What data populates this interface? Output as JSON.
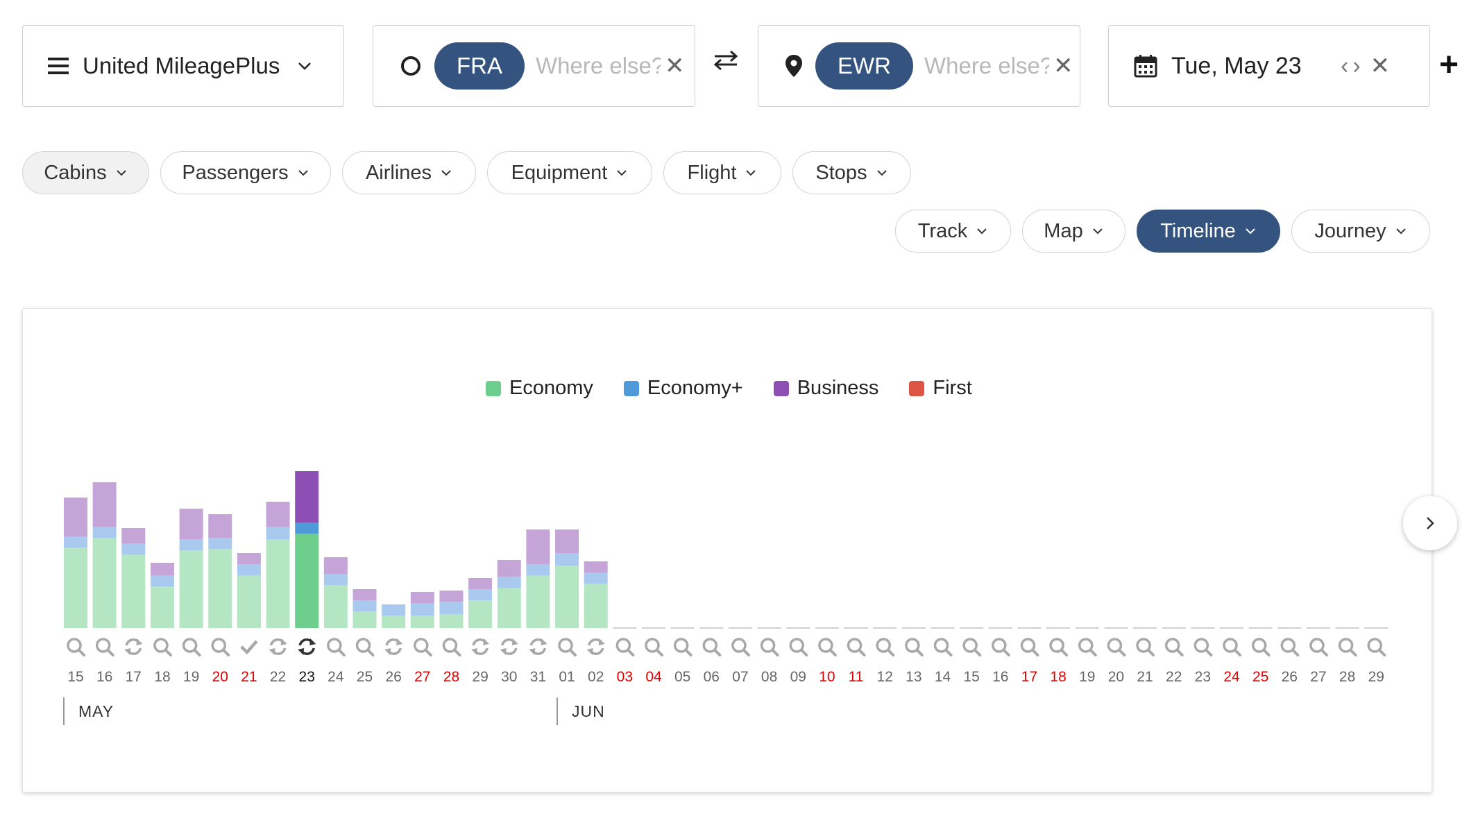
{
  "search_bar": {
    "program": "United MileagePlus",
    "origin": {
      "code": "FRA",
      "placeholder": "Where else?"
    },
    "destination": {
      "code": "EWR",
      "placeholder": "Where else?"
    },
    "date": "Tue, May 23",
    "clear_glyph": "✕",
    "prev_glyph": "‹",
    "next_glyph": "›",
    "add_glyph": "+"
  },
  "filters": [
    {
      "label": "Cabins",
      "name": "cabins"
    },
    {
      "label": "Passengers",
      "name": "passengers"
    },
    {
      "label": "Airlines",
      "name": "airlines"
    },
    {
      "label": "Equipment",
      "name": "equipment"
    },
    {
      "label": "Flight",
      "name": "flight"
    },
    {
      "label": "Stops",
      "name": "stops"
    }
  ],
  "views": [
    {
      "label": "Track",
      "name": "track"
    },
    {
      "label": "Map",
      "name": "map"
    },
    {
      "label": "Timeline",
      "name": "timeline",
      "active": true
    },
    {
      "label": "Journey",
      "name": "journey"
    }
  ],
  "colors": {
    "accent": "#34547f",
    "economy": "#6dcf8b",
    "economy_plus": "#4f9ad8",
    "business": "#8e4fb5",
    "first": "#dd5444",
    "weekend": "#e00000"
  },
  "legend": [
    {
      "label": "Economy",
      "color": "#6dcf8b"
    },
    {
      "label": "Economy+",
      "color": "#4f9ad8"
    },
    {
      "label": "Business",
      "color": "#8e4fb5"
    },
    {
      "label": "First",
      "color": "#dd5444"
    }
  ],
  "months": [
    "MAY",
    "JUN"
  ],
  "chart_data": {
    "type": "bar",
    "stacked": true,
    "title": "",
    "series_names": [
      "Economy",
      "Economy+",
      "Business",
      "First"
    ],
    "selected": "23",
    "days": [
      {
        "label": "15",
        "weekend": false,
        "status": "search",
        "economy": 58,
        "economy_plus": 8,
        "business": 28,
        "first": 0
      },
      {
        "label": "16",
        "weekend": false,
        "status": "search",
        "economy": 65,
        "economy_plus": 8,
        "business": 32,
        "first": 0
      },
      {
        "label": "17",
        "weekend": false,
        "status": "refresh",
        "economy": 53,
        "economy_plus": 8,
        "business": 11,
        "first": 0
      },
      {
        "label": "18",
        "weekend": false,
        "status": "search",
        "economy": 30,
        "economy_plus": 8,
        "business": 9,
        "first": 0
      },
      {
        "label": "19",
        "weekend": false,
        "status": "search",
        "economy": 56,
        "economy_plus": 8,
        "business": 22,
        "first": 0
      },
      {
        "label": "20",
        "weekend": true,
        "status": "search",
        "economy": 57,
        "economy_plus": 8,
        "business": 17,
        "first": 0
      },
      {
        "label": "21",
        "weekend": true,
        "status": "check",
        "economy": 38,
        "economy_plus": 8,
        "business": 8,
        "first": 0
      },
      {
        "label": "22",
        "weekend": false,
        "status": "refresh",
        "economy": 64,
        "economy_plus": 9,
        "business": 18,
        "first": 0
      },
      {
        "label": "23",
        "weekend": false,
        "status": "refresh-active",
        "economy": 68,
        "economy_plus": 8,
        "business": 37,
        "first": 0
      },
      {
        "label": "24",
        "weekend": false,
        "status": "search",
        "economy": 31,
        "economy_plus": 8,
        "business": 12,
        "first": 0
      },
      {
        "label": "25",
        "weekend": false,
        "status": "search",
        "economy": 12,
        "economy_plus": 8,
        "business": 8,
        "first": 0
      },
      {
        "label": "26",
        "weekend": false,
        "status": "loading",
        "economy": 9,
        "economy_plus": 8,
        "business": 0,
        "first": 0
      },
      {
        "label": "27",
        "weekend": true,
        "status": "search",
        "economy": 9,
        "economy_plus": 9,
        "business": 8,
        "first": 0
      },
      {
        "label": "28",
        "weekend": true,
        "status": "search",
        "economy": 10,
        "economy_plus": 9,
        "business": 8,
        "first": 0
      },
      {
        "label": "29",
        "weekend": false,
        "status": "refresh",
        "economy": 20,
        "economy_plus": 8,
        "business": 8,
        "first": 0
      },
      {
        "label": "30",
        "weekend": false,
        "status": "refresh",
        "economy": 29,
        "economy_plus": 8,
        "business": 12,
        "first": 0
      },
      {
        "label": "31",
        "weekend": false,
        "status": "refresh",
        "economy": 38,
        "economy_plus": 8,
        "business": 25,
        "first": 0
      },
      {
        "label": "01",
        "weekend": false,
        "status": "search",
        "economy": 45,
        "economy_plus": 9,
        "business": 17,
        "first": 0
      },
      {
        "label": "02",
        "weekend": false,
        "status": "refresh",
        "economy": 32,
        "economy_plus": 8,
        "business": 8,
        "first": 0
      },
      {
        "label": "03",
        "weekend": true,
        "status": "search",
        "economy": 0,
        "economy_plus": 0,
        "business": 0,
        "first": 0
      },
      {
        "label": "04",
        "weekend": true,
        "status": "search",
        "economy": 0,
        "economy_plus": 0,
        "business": 0,
        "first": 0
      },
      {
        "label": "05",
        "weekend": false,
        "status": "search",
        "economy": 0,
        "economy_plus": 0,
        "business": 0,
        "first": 0
      },
      {
        "label": "06",
        "weekend": false,
        "status": "search",
        "economy": 0,
        "economy_plus": 0,
        "business": 0,
        "first": 0
      },
      {
        "label": "07",
        "weekend": false,
        "status": "search",
        "economy": 0,
        "economy_plus": 0,
        "business": 0,
        "first": 0
      },
      {
        "label": "08",
        "weekend": false,
        "status": "search",
        "economy": 0,
        "economy_plus": 0,
        "business": 0,
        "first": 0
      },
      {
        "label": "09",
        "weekend": false,
        "status": "search",
        "economy": 0,
        "economy_plus": 0,
        "business": 0,
        "first": 0
      },
      {
        "label": "10",
        "weekend": true,
        "status": "search",
        "economy": 0,
        "economy_plus": 0,
        "business": 0,
        "first": 0
      },
      {
        "label": "11",
        "weekend": true,
        "status": "search",
        "economy": 0,
        "economy_plus": 0,
        "business": 0,
        "first": 0
      },
      {
        "label": "12",
        "weekend": false,
        "status": "search",
        "economy": 0,
        "economy_plus": 0,
        "business": 0,
        "first": 0
      },
      {
        "label": "13",
        "weekend": false,
        "status": "search",
        "economy": 0,
        "economy_plus": 0,
        "business": 0,
        "first": 0
      },
      {
        "label": "14",
        "weekend": false,
        "status": "search",
        "economy": 0,
        "economy_plus": 0,
        "business": 0,
        "first": 0
      },
      {
        "label": "15",
        "weekend": false,
        "status": "search",
        "economy": 0,
        "economy_plus": 0,
        "business": 0,
        "first": 0
      },
      {
        "label": "16",
        "weekend": false,
        "status": "search",
        "economy": 0,
        "economy_plus": 0,
        "business": 0,
        "first": 0
      },
      {
        "label": "17",
        "weekend": true,
        "status": "search",
        "economy": 0,
        "economy_plus": 0,
        "business": 0,
        "first": 0
      },
      {
        "label": "18",
        "weekend": true,
        "status": "search",
        "economy": 0,
        "economy_plus": 0,
        "business": 0,
        "first": 0
      },
      {
        "label": "19",
        "weekend": false,
        "status": "search",
        "economy": 0,
        "economy_plus": 0,
        "business": 0,
        "first": 0
      },
      {
        "label": "20",
        "weekend": false,
        "status": "search",
        "economy": 0,
        "economy_plus": 0,
        "business": 0,
        "first": 0
      },
      {
        "label": "21",
        "weekend": false,
        "status": "search",
        "economy": 0,
        "economy_plus": 0,
        "business": 0,
        "first": 0
      },
      {
        "label": "22",
        "weekend": false,
        "status": "search",
        "economy": 0,
        "economy_plus": 0,
        "business": 0,
        "first": 0
      },
      {
        "label": "23",
        "weekend": false,
        "status": "search",
        "economy": 0,
        "economy_plus": 0,
        "business": 0,
        "first": 0
      },
      {
        "label": "24",
        "weekend": true,
        "status": "search",
        "economy": 0,
        "economy_plus": 0,
        "business": 0,
        "first": 0
      },
      {
        "label": "25",
        "weekend": true,
        "status": "search",
        "economy": 0,
        "economy_plus": 0,
        "business": 0,
        "first": 0
      },
      {
        "label": "26",
        "weekend": false,
        "status": "search",
        "economy": 0,
        "economy_plus": 0,
        "business": 0,
        "first": 0
      },
      {
        "label": "27",
        "weekend": false,
        "status": "search",
        "economy": 0,
        "economy_plus": 0,
        "business": 0,
        "first": 0
      },
      {
        "label": "28",
        "weekend": false,
        "status": "search",
        "economy": 0,
        "economy_plus": 0,
        "business": 0,
        "first": 0
      },
      {
        "label": "29",
        "weekend": false,
        "status": "search",
        "economy": 0,
        "economy_plus": 0,
        "business": 0,
        "first": 0
      }
    ]
  }
}
